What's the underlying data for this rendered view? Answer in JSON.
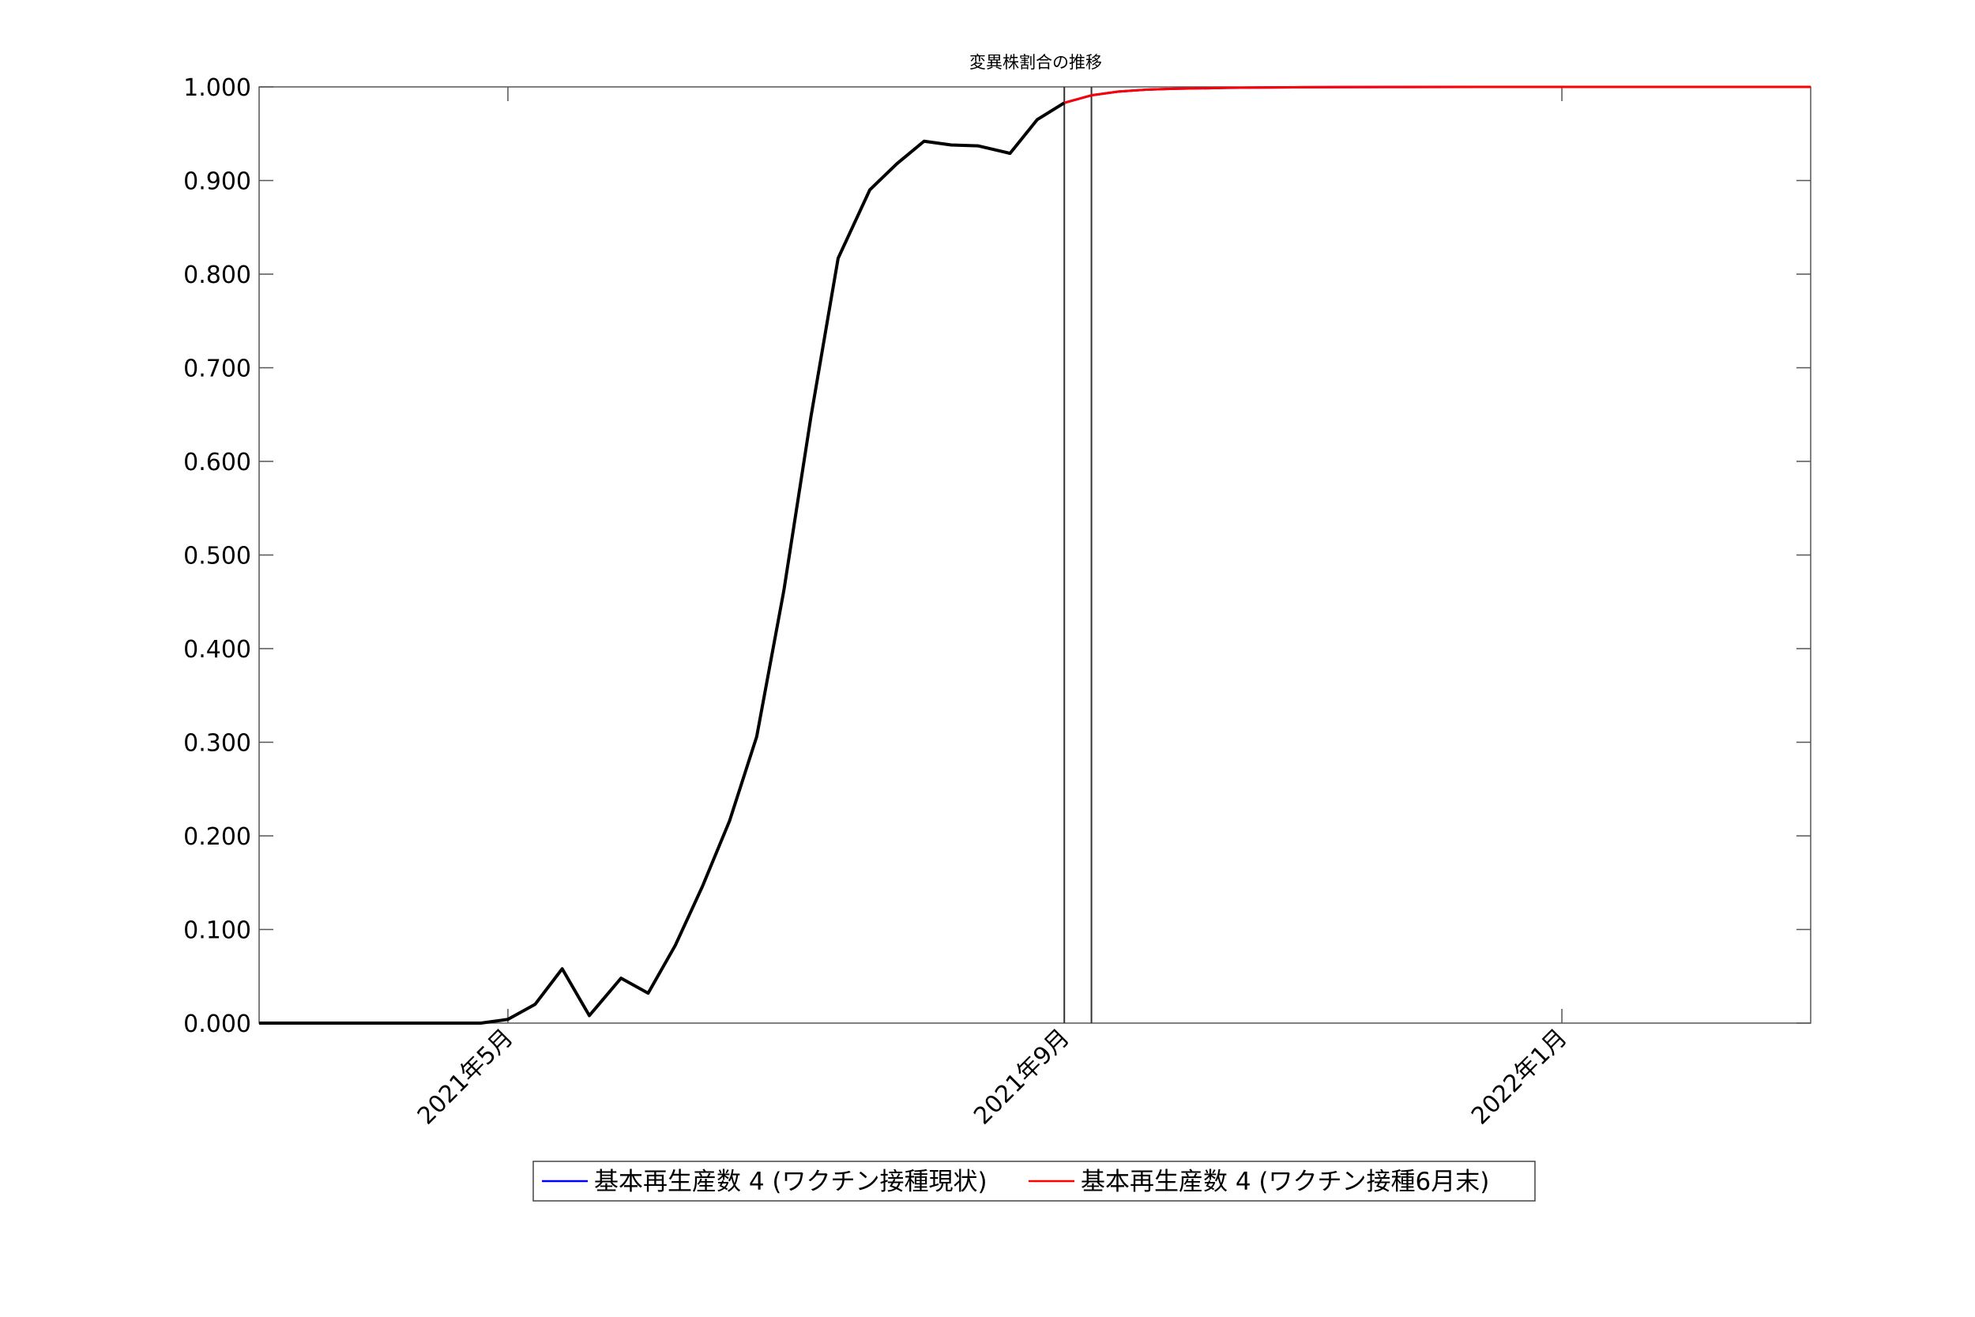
{
  "chart_data": {
    "type": "line",
    "title": "変異株割合の推移",
    "xlabel": "",
    "ylabel": "",
    "ylim": [
      0,
      1
    ],
    "xlim_days": [
      0,
      343
    ],
    "y_ticks": [
      {
        "value": 0.0,
        "label": "0.000"
      },
      {
        "value": 0.1,
        "label": "0.100"
      },
      {
        "value": 0.2,
        "label": "0.200"
      },
      {
        "value": 0.3,
        "label": "0.300"
      },
      {
        "value": 0.4,
        "label": "0.400"
      },
      {
        "value": 0.5,
        "label": "0.500"
      },
      {
        "value": 0.6,
        "label": "0.600"
      },
      {
        "value": 0.7,
        "label": "0.700"
      },
      {
        "value": 0.8,
        "label": "0.800"
      },
      {
        "value": 0.9,
        "label": "0.900"
      },
      {
        "value": 1.0,
        "label": "1.000"
      }
    ],
    "x_ticks": [
      {
        "day": 55,
        "label": "2021年5月"
      },
      {
        "day": 178,
        "label": "2021年9月"
      },
      {
        "day": 288,
        "label": "2022年1月"
      }
    ],
    "vertical_lines_days": [
      178,
      184
    ],
    "observed": {
      "name": "observed",
      "color": "#000000",
      "x_days": [
        0,
        7,
        14,
        21,
        28,
        35,
        42,
        49,
        55,
        61,
        67,
        73,
        80,
        86,
        92,
        98,
        104,
        110,
        116,
        122,
        128,
        135,
        141,
        147,
        153,
        159,
        166,
        172,
        178
      ],
      "values": [
        0.0,
        0.0,
        0.0,
        0.0,
        0.0,
        0.0,
        0.0,
        0.0,
        0.004,
        0.02,
        0.058,
        0.008,
        0.048,
        0.032,
        0.083,
        0.146,
        0.216,
        0.306,
        0.462,
        0.648,
        0.817,
        0.89,
        0.918,
        0.942,
        0.938,
        0.937,
        0.929,
        0.965,
        0.983
      ]
    },
    "series": [
      {
        "name": "基本再生産数 4 (ワクチン接種現状)",
        "color": "#0000ff",
        "x_days": [
          178,
          184,
          190,
          196,
          202,
          208,
          214,
          220,
          226,
          232,
          238,
          250,
          270,
          290,
          310,
          343
        ],
        "values": [
          0.983,
          0.991,
          0.995,
          0.997,
          0.998,
          0.9985,
          0.999,
          0.9993,
          0.9995,
          0.9997,
          0.9998,
          0.9999,
          1.0,
          1.0,
          1.0,
          1.0
        ]
      },
      {
        "name": "基本再生産数 4 (ワクチン接種6月末)",
        "color": "#ff0000",
        "x_days": [
          178,
          184,
          190,
          196,
          202,
          208,
          214,
          220,
          226,
          232,
          238,
          250,
          270,
          290,
          310,
          343
        ],
        "values": [
          0.983,
          0.991,
          0.995,
          0.997,
          0.998,
          0.9985,
          0.999,
          0.9993,
          0.9995,
          0.9997,
          0.9998,
          0.9999,
          1.0,
          1.0,
          1.0,
          1.0
        ]
      }
    ],
    "legend": {
      "placement": "bottom-center",
      "entries": [
        {
          "label": "基本再生産数 4 (ワクチン接種現状)",
          "color": "#0000ff"
        },
        {
          "label": "基本再生産数 4 (ワクチン接種6月末)",
          "color": "#ff0000"
        }
      ]
    }
  }
}
